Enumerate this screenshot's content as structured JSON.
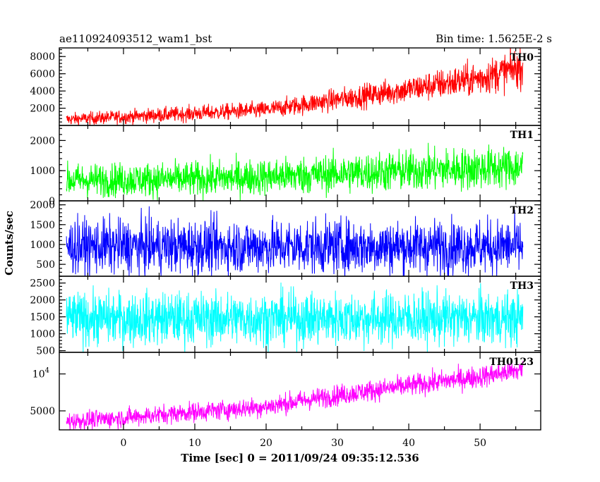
{
  "chart_data": {
    "type": "line",
    "title_left": "ae110924093512_wam1_bst",
    "title_right": "Bin time: 1.5625E-2 s",
    "xlabel": "Time [sec] 0 = 2011/09/24 09:35:12.536",
    "ylabel": "Counts/sec",
    "xlim": [
      -9,
      58.5
    ],
    "x_ticks": [
      0,
      10,
      20,
      30,
      40,
      50
    ],
    "x_data_range": [
      -8,
      56
    ],
    "shared_x": true,
    "panels": [
      {
        "name": "TH0",
        "color": "#ff0000",
        "ylim": [
          0,
          9000
        ],
        "scale": "linear",
        "y_ticks": [
          {
            "v": 2000,
            "t": "2000"
          },
          {
            "v": 4000,
            "t": "4000"
          },
          {
            "v": 6000,
            "t": "6000"
          },
          {
            "v": 8000,
            "t": "8000"
          }
        ],
        "trend": [
          [
            -8,
            700
          ],
          [
            0,
            1000
          ],
          [
            10,
            1400
          ],
          [
            20,
            1800
          ],
          [
            30,
            3000
          ],
          [
            40,
            4200
          ],
          [
            50,
            5500
          ],
          [
            56,
            6800
          ]
        ],
        "spread": [
          [
            -8,
            500
          ],
          [
            20,
            700
          ],
          [
            40,
            1100
          ],
          [
            56,
            1600
          ]
        ]
      },
      {
        "name": "TH1",
        "color": "#00ff00",
        "ylim": [
          0,
          2500
        ],
        "scale": "linear",
        "y_ticks": [
          {
            "v": 0,
            "t": "0"
          },
          {
            "v": 1000,
            "t": "1000"
          },
          {
            "v": 2000,
            "t": "2000"
          }
        ],
        "trend": [
          [
            -8,
            680
          ],
          [
            0,
            700
          ],
          [
            10,
            720
          ],
          [
            20,
            800
          ],
          [
            30,
            900
          ],
          [
            40,
            1000
          ],
          [
            50,
            1080
          ],
          [
            56,
            1120
          ]
        ],
        "spread": [
          [
            -8,
            380
          ],
          [
            20,
            420
          ],
          [
            40,
            480
          ],
          [
            56,
            500
          ]
        ]
      },
      {
        "name": "TH2",
        "color": "#0000ff",
        "ylim": [
          200,
          2100
        ],
        "scale": "linear",
        "y_ticks": [
          {
            "v": 500,
            "t": "500"
          },
          {
            "v": 1000,
            "t": "1000"
          },
          {
            "v": 1500,
            "t": "1500"
          },
          {
            "v": 2000,
            "t": "2000"
          }
        ],
        "trend": [
          [
            -8,
            950
          ],
          [
            56,
            950
          ]
        ],
        "spread": [
          [
            -8,
            480
          ],
          [
            56,
            480
          ]
        ]
      },
      {
        "name": "TH3",
        "color": "#00ffff",
        "ylim": [
          450,
          2700
        ],
        "scale": "linear",
        "y_ticks": [
          {
            "v": 500,
            "t": "500"
          },
          {
            "v": 1000,
            "t": "1000"
          },
          {
            "v": 1500,
            "t": "1500"
          },
          {
            "v": 2000,
            "t": "2000"
          },
          {
            "v": 2500,
            "t": "2500"
          }
        ],
        "trend": [
          [
            -8,
            1450
          ],
          [
            56,
            1450
          ]
        ],
        "spread": [
          [
            -8,
            550
          ],
          [
            56,
            550
          ]
        ]
      },
      {
        "name": "TH0123",
        "color": "#ff00ff",
        "ylim": [
          3500,
          15000
        ],
        "scale": "log",
        "y_ticks": [
          {
            "v": 5000,
            "t": "5000"
          },
          {
            "v": 10000,
            "t": "10",
            "sup": "4"
          }
        ],
        "trend": [
          [
            -8,
            4100
          ],
          [
            0,
            4400
          ],
          [
            10,
            4900
          ],
          [
            20,
            5400
          ],
          [
            30,
            6700
          ],
          [
            40,
            8000
          ],
          [
            50,
            9500
          ],
          [
            56,
            10800
          ]
        ],
        "spread": [
          [
            -8,
            0.12
          ],
          [
            56,
            0.15
          ]
        ]
      }
    ]
  }
}
